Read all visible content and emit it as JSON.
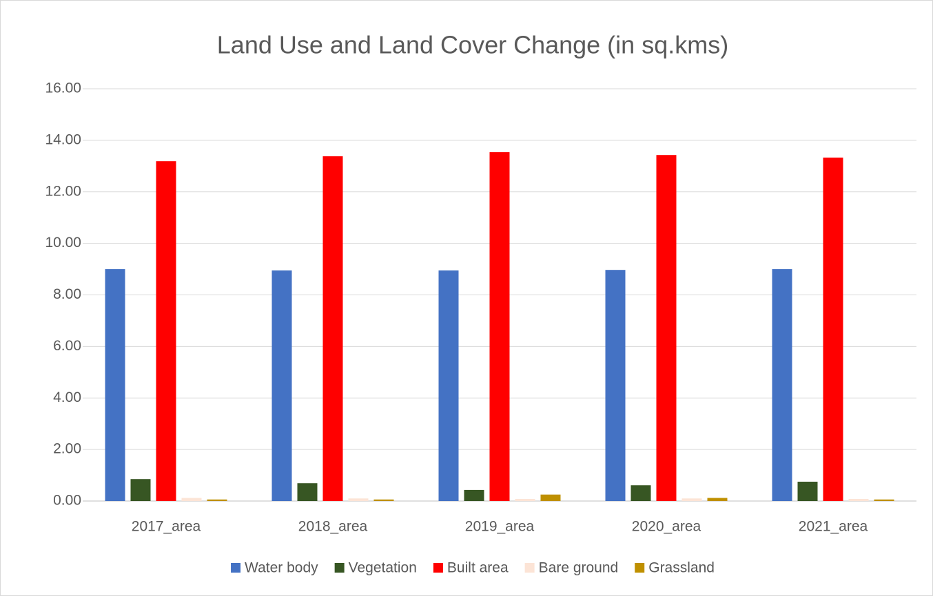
{
  "chart_data": {
    "type": "bar",
    "title": "Land Use and Land Cover Change (in sq.kms)",
    "categories": [
      "2017_area",
      "2018_area",
      "2019_area",
      "2020_area",
      "2021_area"
    ],
    "series": [
      {
        "name": "Water body",
        "color": "#4472c4",
        "values": [
          9.0,
          8.95,
          8.95,
          8.97,
          9.0
        ]
      },
      {
        "name": "Vegetation",
        "color": "#375623",
        "values": [
          0.85,
          0.69,
          0.43,
          0.61,
          0.75
        ]
      },
      {
        "name": "Built area",
        "color": "#ff0000",
        "values": [
          13.19,
          13.38,
          13.54,
          13.43,
          13.33
        ]
      },
      {
        "name": "Bare ground",
        "color": "#fce4d6",
        "values": [
          0.12,
          0.1,
          0.08,
          0.1,
          0.08
        ]
      },
      {
        "name": "Grassland",
        "color": "#bf9000",
        "values": [
          0.06,
          0.06,
          0.25,
          0.12,
          0.06
        ]
      }
    ],
    "ylim": [
      0,
      16
    ],
    "yticks": [
      {
        "value": 0,
        "label": "0.00"
      },
      {
        "value": 2,
        "label": "2.00"
      },
      {
        "value": 4,
        "label": "4.00"
      },
      {
        "value": 6,
        "label": "6.00"
      },
      {
        "value": 8,
        "label": "8.00"
      },
      {
        "value": 10,
        "label": "10.00"
      },
      {
        "value": 12,
        "label": "12.00"
      },
      {
        "value": 14,
        "label": "14.00"
      },
      {
        "value": 16,
        "label": "16.00"
      }
    ],
    "grid": true,
    "legend": "bottom"
  }
}
